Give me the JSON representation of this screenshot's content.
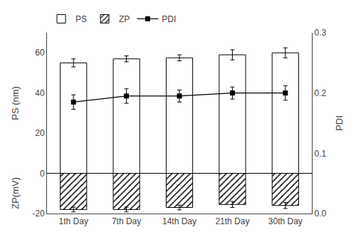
{
  "chart_data": {
    "type": "bar",
    "categories": [
      "1th Day",
      "7th Day",
      "14th Day",
      "21th Day",
      "30th Day"
    ],
    "series": [
      {
        "name": "PS",
        "type": "bar",
        "color": "white",
        "values": [
          55.0,
          57.0,
          57.5,
          59.0,
          60.0
        ],
        "errors": [
          2.0,
          1.5,
          1.5,
          2.5,
          2.5
        ]
      },
      {
        "name": "ZP",
        "type": "bar",
        "color": "white",
        "marker": "hatch",
        "values": [
          -18.0,
          -18.0,
          -17.0,
          -15.5,
          -16.0
        ],
        "errors": [
          1.2,
          1.2,
          1.2,
          1.5,
          1.5
        ]
      },
      {
        "name": "PDI",
        "type": "line",
        "axis": "y2",
        "color": "black",
        "marker": "square",
        "line_style": "solid",
        "values": [
          0.185,
          0.195,
          0.195,
          0.2,
          0.2
        ],
        "errors": [
          0.012,
          0.012,
          0.01,
          0.01,
          0.012
        ]
      }
    ],
    "ylim": [
      -20,
      70
    ],
    "yticks": [
      -20,
      0,
      20,
      40,
      60
    ],
    "y2lim": [
      0.0,
      0.3
    ],
    "y2ticks": [
      {
        "value": 0.0,
        "label": "0.0"
      },
      0.1,
      0.2,
      0.3
    ],
    "y2label": "PDI",
    "annotations": [
      "PS (nm)",
      "ZP(mV)"
    ],
    "legend": "upper left",
    "grid": false
  }
}
